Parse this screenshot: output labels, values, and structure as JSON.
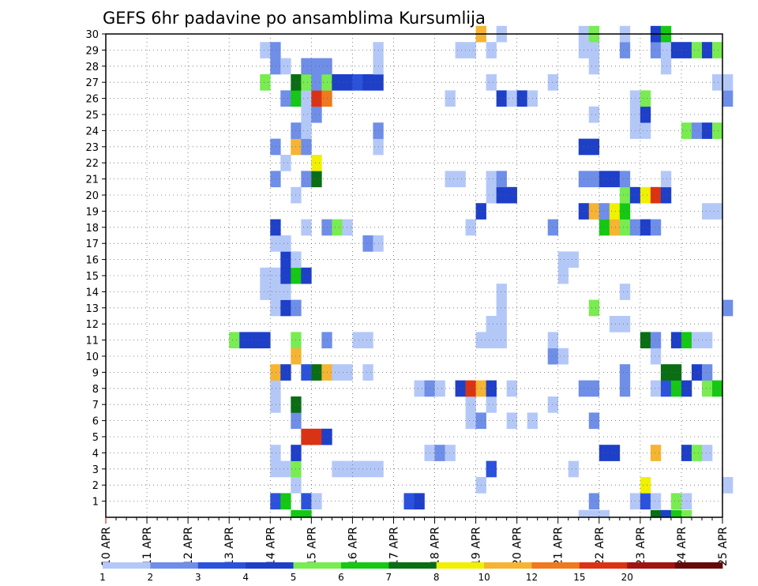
{
  "chart_data": {
    "type": "heatmap",
    "title": "GEFS 6hr padavine po ansamblima Kursumlija",
    "xlabel": "",
    "ylabel": "",
    "x_tick_labels": [
      "10 APR",
      "11 APR",
      "12 APR",
      "13 APR",
      "14 APR",
      "15 APR",
      "16 APR",
      "17 APR",
      "18 APR",
      "19 APR",
      "20 APR",
      "21 APR",
      "22 APR",
      "23 APR",
      "24 APR",
      "25 APR"
    ],
    "y_tick_labels": [
      "1",
      "2",
      "3",
      "4",
      "5",
      "6",
      "7",
      "8",
      "9",
      "10",
      "11",
      "12",
      "13",
      "14",
      "15",
      "16",
      "17",
      "18",
      "19",
      "20",
      "21",
      "22",
      "23",
      "24",
      "25",
      "26",
      "27",
      "28",
      "29",
      "30"
    ],
    "xlim": [
      "10 APR 00Z",
      "25 APR 00Z"
    ],
    "ylim": [
      0,
      30
    ],
    "x_step": "6 hours",
    "grid": true,
    "legend": {
      "placement": "bottom",
      "labels": [
        "1",
        "2",
        "3",
        "4",
        "5",
        "6",
        "7",
        "8",
        "10",
        "12",
        "15",
        "20"
      ],
      "colors": [
        "#b4c8f8",
        "#6e8ee8",
        "#2a52dc",
        "#1e3fc8",
        "#78ec50",
        "#14c814",
        "#0a6e14",
        "#f0f000",
        "#f5b432",
        "#f0781e",
        "#dc3214",
        "#a01414",
        "#640a0a"
      ]
    },
    "values": [
      [
        "4/10 00Z",
        0,
        0
      ],
      [
        "4/14 00Z",
        1,
        3
      ],
      [
        "4/14 06Z",
        1,
        6
      ],
      [
        "4/14 18Z",
        1,
        3
      ],
      [
        "4/15 00Z",
        1,
        1
      ],
      [
        "4/17 06Z",
        1,
        3
      ],
      [
        "4/17 12Z",
        1,
        4
      ],
      [
        "4/21 18Z",
        1,
        2
      ],
      [
        "4/22 18Z",
        1,
        1
      ],
      [
        "4/23 00Z",
        1,
        3
      ],
      [
        "4/23 06Z",
        1,
        1
      ],
      [
        "4/23 18Z",
        1,
        5
      ],
      [
        "4/24 00Z",
        1,
        1
      ],
      [
        "4/14 12Z",
        2,
        1
      ],
      [
        "4/19 00Z",
        2,
        1
      ],
      [
        "4/23 00Z",
        2,
        9
      ],
      [
        "4/25 00Z",
        2,
        1
      ],
      [
        "4/14 00Z",
        3,
        1
      ],
      [
        "4/14 06Z",
        3,
        1
      ],
      [
        "4/14 12Z",
        3,
        5
      ],
      [
        "4/15 12Z",
        3,
        1
      ],
      [
        "4/15 18Z",
        3,
        1
      ],
      [
        "4/16 00Z",
        3,
        1
      ],
      [
        "4/16 06Z",
        3,
        1
      ],
      [
        "4/16 12Z",
        3,
        1
      ],
      [
        "4/19 06Z",
        3,
        3
      ],
      [
        "4/21 06Z",
        3,
        1
      ],
      [
        "4/14 00Z",
        4,
        1
      ],
      [
        "4/14 12Z",
        4,
        4
      ],
      [
        "4/17 18Z",
        4,
        1
      ],
      [
        "4/18 00Z",
        4,
        2
      ],
      [
        "4/18 06Z",
        4,
        1
      ],
      [
        "4/22 00Z",
        4,
        4
      ],
      [
        "4/22 06Z",
        4,
        4
      ],
      [
        "4/23 06Z",
        4,
        10
      ],
      [
        "4/24 00Z",
        4,
        4
      ],
      [
        "4/24 06Z",
        4,
        5
      ],
      [
        "4/24 12Z",
        4,
        1
      ],
      [
        "4/14 18Z",
        5,
        15
      ],
      [
        "4/15 00Z",
        5,
        15
      ],
      [
        "4/15 06Z",
        5,
        4
      ],
      [
        "4/14 12Z",
        6,
        2
      ],
      [
        "4/18 18Z",
        6,
        1
      ],
      [
        "4/19 00Z",
        6,
        2
      ],
      [
        "4/19 18Z",
        6,
        1
      ],
      [
        "4/20 06Z",
        6,
        1
      ],
      [
        "4/21 18Z",
        6,
        2
      ],
      [
        "4/14 00Z",
        7,
        1
      ],
      [
        "4/14 12Z",
        7,
        7
      ],
      [
        "4/18 18Z",
        7,
        1
      ],
      [
        "4/19 06Z",
        7,
        1
      ],
      [
        "4/20 18Z",
        7,
        1
      ],
      [
        "4/14 00Z",
        8,
        1
      ],
      [
        "4/17 12Z",
        8,
        1
      ],
      [
        "4/17 18Z",
        8,
        2
      ],
      [
        "4/18 00Z",
        8,
        1
      ],
      [
        "4/18 12Z",
        8,
        4
      ],
      [
        "4/18 18Z",
        8,
        15
      ],
      [
        "4/19 00Z",
        8,
        10
      ],
      [
        "4/19 06Z",
        8,
        4
      ],
      [
        "4/19 18Z",
        8,
        1
      ],
      [
        "4/21 12Z",
        8,
        2
      ],
      [
        "4/21 18Z",
        8,
        2
      ],
      [
        "4/22 12Z",
        8,
        2
      ],
      [
        "4/23 06Z",
        8,
        1
      ],
      [
        "4/23 12Z",
        8,
        3
      ],
      [
        "4/23 18Z",
        8,
        6
      ],
      [
        "4/24 00Z",
        8,
        4
      ],
      [
        "4/24 12Z",
        8,
        5
      ],
      [
        "4/24 18Z",
        8,
        6
      ],
      [
        "4/14 00Z",
        9,
        10
      ],
      [
        "4/14 06Z",
        9,
        4
      ],
      [
        "4/14 18Z",
        9,
        3
      ],
      [
        "4/15 00Z",
        9,
        7
      ],
      [
        "4/15 06Z",
        9,
        10
      ],
      [
        "4/15 12Z",
        9,
        1
      ],
      [
        "4/15 18Z",
        9,
        1
      ],
      [
        "4/16 06Z",
        9,
        1
      ],
      [
        "4/22 12Z",
        9,
        2
      ],
      [
        "4/23 12Z",
        9,
        7
      ],
      [
        "4/23 18Z",
        9,
        7
      ],
      [
        "4/24 06Z",
        9,
        4
      ],
      [
        "4/24 12Z",
        9,
        2
      ],
      [
        "4/14 12Z",
        10,
        10
      ],
      [
        "4/20 18Z",
        10,
        2
      ],
      [
        "4/21 00Z",
        10,
        1
      ],
      [
        "4/23 06Z",
        10,
        1
      ],
      [
        "4/13 00Z",
        11,
        5
      ],
      [
        "4/13 06Z",
        11,
        4
      ],
      [
        "4/13 12Z",
        11,
        4
      ],
      [
        "4/13 18Z",
        11,
        4
      ],
      [
        "4/14 12Z",
        11,
        5
      ],
      [
        "4/15 06Z",
        11,
        2
      ],
      [
        "4/16 00Z",
        11,
        1
      ],
      [
        "4/16 06Z",
        11,
        1
      ],
      [
        "4/19 00Z",
        11,
        1
      ],
      [
        "4/19 06Z",
        11,
        1
      ],
      [
        "4/19 12Z",
        11,
        1
      ],
      [
        "4/20 18Z",
        11,
        1
      ],
      [
        "4/23 00Z",
        11,
        7
      ],
      [
        "4/23 06Z",
        11,
        2
      ],
      [
        "4/23 18Z",
        11,
        4
      ],
      [
        "4/24 00Z",
        11,
        6
      ],
      [
        "4/24 06Z",
        11,
        1
      ],
      [
        "4/24 12Z",
        11,
        1
      ],
      [
        "4/19 06Z",
        12,
        1
      ],
      [
        "4/19 12Z",
        12,
        1
      ],
      [
        "4/22 06Z",
        12,
        1
      ],
      [
        "4/22 12Z",
        12,
        1
      ],
      [
        "4/14 00Z",
        13,
        1
      ],
      [
        "4/14 06Z",
        13,
        4
      ],
      [
        "4/14 12Z",
        13,
        2
      ],
      [
        "4/19 12Z",
        13,
        1
      ],
      [
        "4/21 18Z",
        13,
        5
      ],
      [
        "4/25 00Z",
        13,
        2
      ],
      [
        "4/13 18Z",
        14,
        1
      ],
      [
        "4/14 00Z",
        14,
        1
      ],
      [
        "4/14 06Z",
        14,
        1
      ],
      [
        "4/19 12Z",
        14,
        1
      ],
      [
        "4/22 12Z",
        14,
        1
      ],
      [
        "4/13 18Z",
        15,
        1
      ],
      [
        "4/14 00Z",
        15,
        1
      ],
      [
        "4/14 06Z",
        15,
        4
      ],
      [
        "4/14 12Z",
        15,
        6
      ],
      [
        "4/14 18Z",
        15,
        4
      ],
      [
        "4/21 00Z",
        15,
        1
      ],
      [
        "4/14 06Z",
        16,
        4
      ],
      [
        "4/14 12Z",
        16,
        1
      ],
      [
        "4/21 00Z",
        16,
        1
      ],
      [
        "4/21 06Z",
        16,
        1
      ],
      [
        "4/14 00Z",
        17,
        1
      ],
      [
        "4/14 06Z",
        17,
        1
      ],
      [
        "4/16 06Z",
        17,
        2
      ],
      [
        "4/16 12Z",
        17,
        1
      ],
      [
        "4/14 00Z",
        18,
        4
      ],
      [
        "4/14 18Z",
        18,
        1
      ],
      [
        "4/15 06Z",
        18,
        2
      ],
      [
        "4/15 12Z",
        18,
        5
      ],
      [
        "4/15 18Z",
        18,
        1
      ],
      [
        "4/18 18Z",
        18,
        1
      ],
      [
        "4/20 18Z",
        18,
        2
      ],
      [
        "4/22 00Z",
        18,
        6
      ],
      [
        "4/22 06Z",
        18,
        10
      ],
      [
        "4/22 12Z",
        18,
        5
      ],
      [
        "4/22 18Z",
        18,
        2
      ],
      [
        "4/23 00Z",
        18,
        4
      ],
      [
        "4/23 06Z",
        18,
        2
      ],
      [
        "4/19 00Z",
        19,
        4
      ],
      [
        "4/21 12Z",
        19,
        4
      ],
      [
        "4/21 18Z",
        19,
        10
      ],
      [
        "4/22 00Z",
        19,
        2
      ],
      [
        "4/22 06Z",
        19,
        8
      ],
      [
        "4/22 12Z",
        19,
        6
      ],
      [
        "4/24 12Z",
        19,
        1
      ],
      [
        "4/24 18Z",
        19,
        1
      ],
      [
        "4/14 12Z",
        20,
        1
      ],
      [
        "4/19 06Z",
        20,
        1
      ],
      [
        "4/19 12Z",
        20,
        4
      ],
      [
        "4/19 18Z",
        20,
        4
      ],
      [
        "4/22 12Z",
        20,
        5
      ],
      [
        "4/22 18Z",
        20,
        4
      ],
      [
        "4/23 00Z",
        20,
        8
      ],
      [
        "4/23 06Z",
        20,
        15
      ],
      [
        "4/23 12Z",
        20,
        4
      ],
      [
        "4/14 00Z",
        21,
        2
      ],
      [
        "4/14 18Z",
        21,
        2
      ],
      [
        "4/15 00Z",
        21,
        7
      ],
      [
        "4/18 06Z",
        21,
        1
      ],
      [
        "4/18 12Z",
        21,
        1
      ],
      [
        "4/19 06Z",
        21,
        1
      ],
      [
        "4/19 12Z",
        21,
        2
      ],
      [
        "4/21 12Z",
        21,
        2
      ],
      [
        "4/21 18Z",
        21,
        2
      ],
      [
        "4/22 00Z",
        21,
        4
      ],
      [
        "4/22 06Z",
        21,
        4
      ],
      [
        "4/22 12Z",
        21,
        2
      ],
      [
        "4/23 12Z",
        21,
        1
      ],
      [
        "4/14 06Z",
        22,
        1
      ],
      [
        "4/15 00Z",
        22,
        8
      ],
      [
        "4/14 00Z",
        23,
        2
      ],
      [
        "4/14 12Z",
        23,
        10
      ],
      [
        "4/14 18Z",
        23,
        2
      ],
      [
        "4/16 12Z",
        23,
        1
      ],
      [
        "4/21 12Z",
        23,
        4
      ],
      [
        "4/21 18Z",
        23,
        4
      ],
      [
        "4/14 12Z",
        24,
        2
      ],
      [
        "4/14 18Z",
        24,
        1
      ],
      [
        "4/16 12Z",
        24,
        2
      ],
      [
        "4/22 18Z",
        24,
        1
      ],
      [
        "4/23 00Z",
        24,
        1
      ],
      [
        "4/24 00Z",
        24,
        5
      ],
      [
        "4/24 06Z",
        24,
        2
      ],
      [
        "4/24 12Z",
        24,
        4
      ],
      [
        "4/24 18Z",
        24,
        5
      ],
      [
        "4/14 18Z",
        25,
        1
      ],
      [
        "4/15 00Z",
        25,
        2
      ],
      [
        "4/21 18Z",
        25,
        1
      ],
      [
        "4/22 18Z",
        25,
        1
      ],
      [
        "4/23 00Z",
        25,
        4
      ],
      [
        "4/14 06Z",
        26,
        2
      ],
      [
        "4/14 12Z",
        26,
        6
      ],
      [
        "4/14 18Z",
        26,
        1
      ],
      [
        "4/15 00Z",
        26,
        15
      ],
      [
        "4/15 06Z",
        26,
        12
      ],
      [
        "4/18 06Z",
        26,
        1
      ],
      [
        "4/19 12Z",
        26,
        4
      ],
      [
        "4/19 18Z",
        26,
        1
      ],
      [
        "4/20 00Z",
        26,
        4
      ],
      [
        "4/20 06Z",
        26,
        1
      ],
      [
        "4/22 18Z",
        26,
        1
      ],
      [
        "4/23 00Z",
        26,
        5
      ],
      [
        "4/25 00Z",
        26,
        2
      ],
      [
        "4/13 18Z",
        27,
        5
      ],
      [
        "4/14 12Z",
        27,
        7
      ],
      [
        "4/14 18Z",
        27,
        5
      ],
      [
        "4/15 00Z",
        27,
        2
      ],
      [
        "4/15 06Z",
        27,
        5
      ],
      [
        "4/15 12Z",
        27,
        4
      ],
      [
        "4/15 18Z",
        27,
        4
      ],
      [
        "4/16 00Z",
        27,
        3
      ],
      [
        "4/16 06Z",
        27,
        4
      ],
      [
        "4/16 12Z",
        27,
        4
      ],
      [
        "4/19 06Z",
        27,
        1
      ],
      [
        "4/20 18Z",
        27,
        1
      ],
      [
        "4/24 18Z",
        27,
        1
      ],
      [
        "4/25 00Z",
        27,
        1
      ],
      [
        "4/14 00Z",
        28,
        2
      ],
      [
        "4/14 06Z",
        28,
        1
      ],
      [
        "4/14 18Z",
        28,
        2
      ],
      [
        "4/15 00Z",
        28,
        2
      ],
      [
        "4/15 06Z",
        28,
        2
      ],
      [
        "4/16 12Z",
        28,
        1
      ],
      [
        "4/21 18Z",
        28,
        1
      ],
      [
        "4/23 12Z",
        28,
        1
      ],
      [
        "4/13 18Z",
        29,
        1
      ],
      [
        "4/14 00Z",
        29,
        2
      ],
      [
        "4/16 12Z",
        29,
        1
      ],
      [
        "4/18 12Z",
        29,
        1
      ],
      [
        "4/18 18Z",
        29,
        1
      ],
      [
        "4/19 06Z",
        29,
        1
      ],
      [
        "4/21 12Z",
        29,
        1
      ],
      [
        "4/21 18Z",
        29,
        1
      ],
      [
        "4/22 12Z",
        29,
        2
      ],
      [
        "4/23 06Z",
        29,
        2
      ],
      [
        "4/23 12Z",
        29,
        1
      ],
      [
        "4/23 18Z",
        29,
        4
      ],
      [
        "4/24 00Z",
        29,
        4
      ],
      [
        "4/24 06Z",
        29,
        5
      ],
      [
        "4/24 12Z",
        29,
        4
      ],
      [
        "4/24 18Z",
        29,
        5
      ],
      [
        "4/19 00Z",
        30,
        10
      ],
      [
        "4/19 12Z",
        30,
        1
      ],
      [
        "4/21 12Z",
        30,
        1
      ],
      [
        "4/21 18Z",
        30,
        5
      ],
      [
        "4/22 12Z",
        30,
        1
      ],
      [
        "4/23 06Z",
        30,
        4
      ],
      [
        "4/23 12Z",
        30,
        6
      ]
    ],
    "extra_cells": [
      [
        "4/14 12Z",
        0,
        6
      ],
      [
        "4/14 18Z",
        0,
        6
      ],
      [
        "4/21 12Z",
        0,
        1
      ],
      [
        "4/21 18Z",
        0,
        1
      ],
      [
        "4/22 00Z",
        0,
        1
      ],
      [
        "4/23 06Z",
        0,
        7
      ],
      [
        "4/23 12Z",
        0,
        4
      ],
      [
        "4/23 18Z",
        0,
        6
      ],
      [
        "4/24 00Z",
        0,
        5
      ]
    ]
  }
}
